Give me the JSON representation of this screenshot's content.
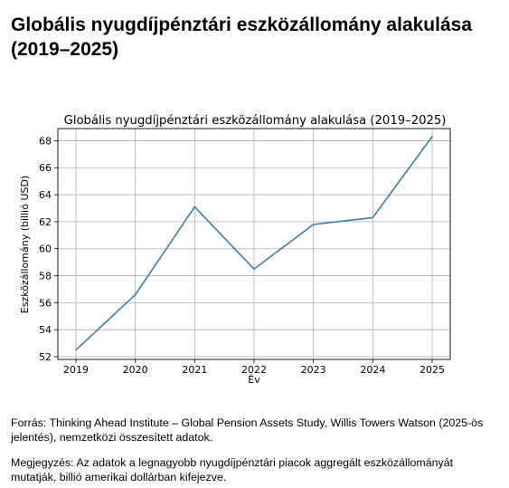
{
  "page": {
    "heading_line1": "Globális nyugdíjpénztári eszközállomány alakulása",
    "heading_line2": "(2019–2025)",
    "source_note": "Forrás: Thinking Ahead Institute – Global Pension Assets Study, Willis Towers Watson (2025-ös jelentés), nemzetközi összesített adatok.",
    "remark_note": "Megjegyzés: Az adatok a legnagyobb nyugdíjpénztári piacok aggregált eszközállományát mutatják, billió amerikai dollárban kifejezve."
  },
  "chart_data": {
    "type": "line",
    "title": "Globális nyugdíjpénztári eszközállomány alakulása (2019–2025)",
    "xlabel": "Év",
    "ylabel": "Eszközállomány (billió USD)",
    "x": [
      "2019",
      "2020",
      "2021",
      "2022",
      "2023",
      "2024",
      "2025"
    ],
    "y": [
      52.5,
      56.6,
      63.1,
      58.5,
      61.8,
      62.3,
      68.3
    ],
    "ylim": [
      51.8,
      68.9
    ],
    "yticks": [
      52,
      54,
      56,
      58,
      60,
      62,
      64,
      66,
      68
    ],
    "grid": true,
    "line_color": "#3a7fae"
  }
}
